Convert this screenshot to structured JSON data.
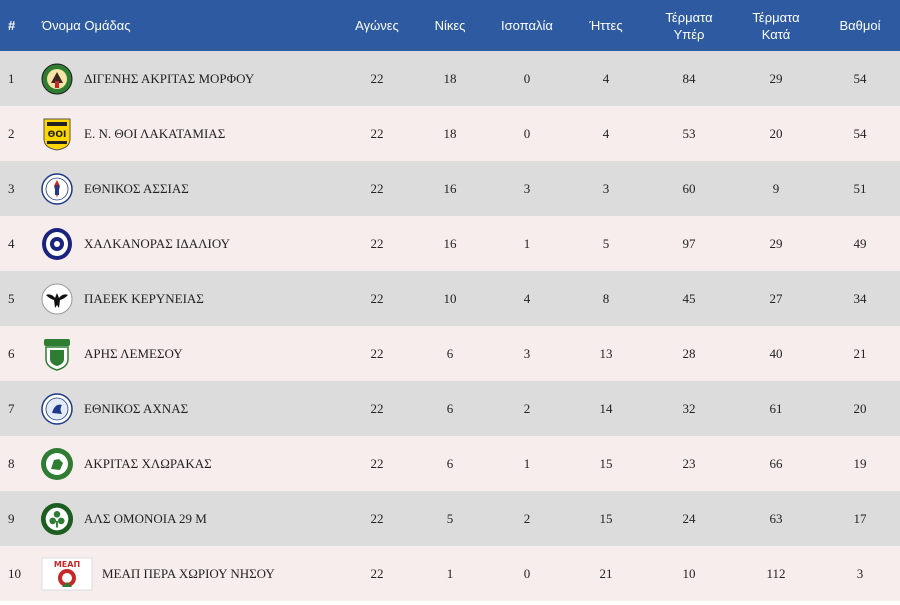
{
  "headers": {
    "rank": "#",
    "team": "Όνομα Ομάδας",
    "played": "Αγώνες",
    "wins": "Νίκες",
    "draws": "Ισοπαλία",
    "losses": "Ήττες",
    "goals_for": [
      "Τέρματα",
      "Υπέρ"
    ],
    "goals_against": [
      "Τέρματα",
      "Κατά"
    ],
    "points": "Βαθμοί"
  },
  "rows": [
    {
      "rank": "1",
      "team": "ΔΙΓΕΝΗΣ ΑΚΡΙΤΑΣ ΜΟΡΦΟΥ",
      "played": "22",
      "wins": "18",
      "draws": "0",
      "losses": "4",
      "gf": "84",
      "ga": "29",
      "pts": "54",
      "logo": "digenis-crest-icon"
    },
    {
      "rank": "2",
      "team": "Ε. Ν. ΘΟΙ ΛΑΚΑΤΑΜΙΑΣ",
      "played": "22",
      "wins": "18",
      "draws": "0",
      "losses": "4",
      "gf": "53",
      "ga": "20",
      "pts": "54",
      "logo": "thoi-crest-icon",
      "logo_text": "ΘΟΙ"
    },
    {
      "rank": "3",
      "team": "ΕΘΝΙΚΟΣ ΑΣΣΙΑΣ",
      "played": "22",
      "wins": "16",
      "draws": "3",
      "losses": "3",
      "gf": "60",
      "ga": "9",
      "pts": "51",
      "logo": "ethnikos-assias-crest-icon"
    },
    {
      "rank": "4",
      "team": "ΧΑΛΚΑΝΟΡΑΣ ΙΔΑΛΙΟΥ",
      "played": "22",
      "wins": "16",
      "draws": "1",
      "losses": "5",
      "gf": "97",
      "ga": "29",
      "pts": "49",
      "logo": "chalkanoras-crest-icon"
    },
    {
      "rank": "5",
      "team": "ΠΑΕΕΚ ΚΕΡΥΝΕΙΑΣ",
      "played": "22",
      "wins": "10",
      "draws": "4",
      "losses": "8",
      "gf": "45",
      "ga": "27",
      "pts": "34",
      "logo": "paeek-eagle-crest-icon"
    },
    {
      "rank": "6",
      "team": "ΑΡΗΣ ΛΕΜΕΣΟΥ",
      "played": "22",
      "wins": "6",
      "draws": "3",
      "losses": "13",
      "gf": "28",
      "ga": "40",
      "pts": "21",
      "logo": "aris-crest-icon"
    },
    {
      "rank": "7",
      "team": "ΕΘΝΙΚΟΣ ΑΧΝΑΣ",
      "played": "22",
      "wins": "6",
      "draws": "2",
      "losses": "14",
      "gf": "32",
      "ga": "61",
      "pts": "20",
      "logo": "ethnikos-achnas-crest-icon"
    },
    {
      "rank": "8",
      "team": "ΑΚΡΙΤΑΣ ΧΛΩΡΑΚΑΣ",
      "played": "22",
      "wins": "6",
      "draws": "1",
      "losses": "15",
      "gf": "23",
      "ga": "66",
      "pts": "19",
      "logo": "akritas-crest-icon"
    },
    {
      "rank": "9",
      "team": "ΑΛΣ ΟΜΟΝΟΙΑ 29 Μ",
      "played": "22",
      "wins": "5",
      "draws": "2",
      "losses": "15",
      "gf": "24",
      "ga": "63",
      "pts": "17",
      "logo": "omonoia-crest-icon"
    },
    {
      "rank": "10",
      "team": "ΜΕΑΠ ΠΕΡΑ ΧΩΡΙΟΥ ΝΗΣΟΥ",
      "played": "22",
      "wins": "1",
      "draws": "0",
      "losses": "21",
      "gf": "10",
      "ga": "112",
      "pts": "3",
      "logo": "meap-crest-icon",
      "logo_text": "ΜΕΑΠ"
    }
  ],
  "colors": {
    "header_bg": "#2d5aa0",
    "row_odd": "#dcdcdc",
    "row_even": "#f8eded"
  }
}
